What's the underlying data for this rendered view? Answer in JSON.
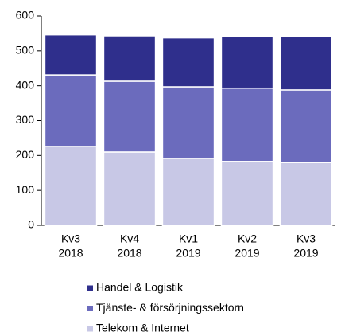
{
  "chart_data": {
    "type": "bar",
    "stacked": true,
    "categories": [
      [
        "Kv3",
        "2018"
      ],
      [
        "Kv4",
        "2018"
      ],
      [
        "Kv1",
        "2019"
      ],
      [
        "Kv2",
        "2019"
      ],
      [
        "Kv3",
        "2019"
      ]
    ],
    "series": [
      {
        "name": "Handel & Logistik",
        "color": "#2f2f8c",
        "values": [
          115,
          130,
          140,
          148,
          153
        ]
      },
      {
        "name": "Tjänste- & försörjningssektorn",
        "color": "#6b6bbd",
        "values": [
          205,
          203,
          205,
          210,
          208
        ]
      },
      {
        "name": "Telekom & Internet",
        "color": "#c8c8e6",
        "values": [
          226,
          210,
          192,
          183,
          180
        ]
      }
    ],
    "ylim": [
      0,
      600
    ],
    "yticks": [
      0,
      100,
      200,
      300,
      400,
      500,
      600
    ],
    "grid": false
  }
}
